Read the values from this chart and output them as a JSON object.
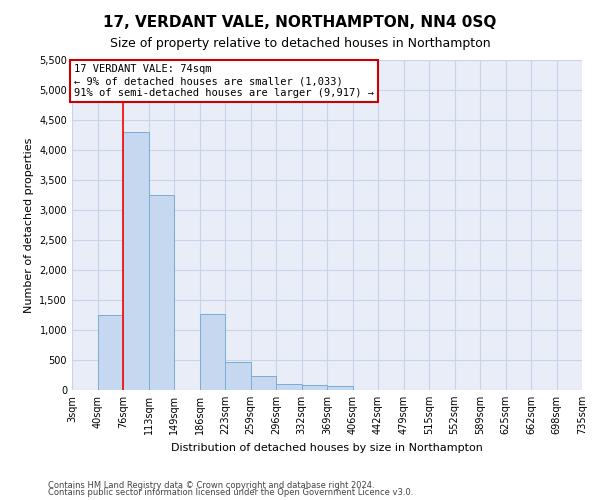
{
  "title": "17, VERDANT VALE, NORTHAMPTON, NN4 0SQ",
  "subtitle": "Size of property relative to detached houses in Northampton",
  "xlabel": "Distribution of detached houses by size in Northampton",
  "ylabel": "Number of detached properties",
  "footer_line1": "Contains HM Land Registry data © Crown copyright and database right 2024.",
  "footer_line2": "Contains public sector information licensed under the Open Government Licence v3.0.",
  "bin_labels": [
    "3sqm",
    "40sqm",
    "76sqm",
    "113sqm",
    "149sqm",
    "186sqm",
    "223sqm",
    "259sqm",
    "296sqm",
    "332sqm",
    "369sqm",
    "406sqm",
    "442sqm",
    "479sqm",
    "515sqm",
    "552sqm",
    "589sqm",
    "625sqm",
    "662sqm",
    "698sqm",
    "735sqm"
  ],
  "n_bins": 20,
  "bar_heights": [
    0,
    1250,
    4300,
    3250,
    0,
    1270,
    470,
    230,
    100,
    90,
    60,
    0,
    0,
    0,
    0,
    0,
    0,
    0,
    0,
    0
  ],
  "bar_color": "#c5d8f0",
  "bar_edgecolor": "#7aadd4",
  "property_line_bin": 2,
  "ylim": [
    0,
    5500
  ],
  "yticks": [
    0,
    500,
    1000,
    1500,
    2000,
    2500,
    3000,
    3500,
    4000,
    4500,
    5000,
    5500
  ],
  "annotation_text": "17 VERDANT VALE: 74sqm\n← 9% of detached houses are smaller (1,033)\n91% of semi-detached houses are larger (9,917) →",
  "annotation_box_facecolor": "#ffffff",
  "annotation_box_edgecolor": "#cc0000",
  "grid_color": "#c8d4e8",
  "background_color": "#e8edf8",
  "title_fontsize": 11,
  "subtitle_fontsize": 9,
  "tick_fontsize": 7,
  "ylabel_fontsize": 8,
  "xlabel_fontsize": 8
}
